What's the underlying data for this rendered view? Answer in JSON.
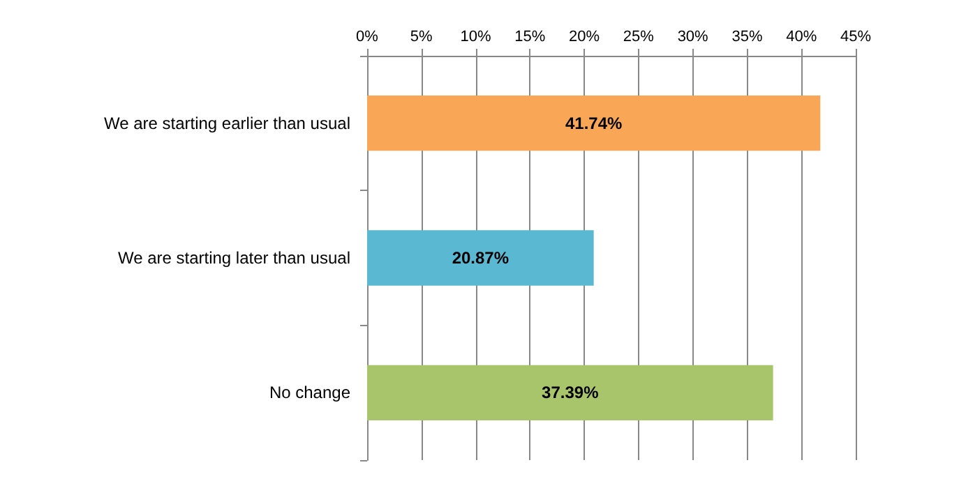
{
  "chart_data": {
    "type": "bar",
    "orientation": "horizontal",
    "categories": [
      "We are starting earlier than usual",
      "We are starting later than usual",
      "No change"
    ],
    "values": [
      41.74,
      20.87,
      37.39
    ],
    "colors": [
      "#f9a656",
      "#5bb8d3",
      "#a9c56c"
    ],
    "value_labels": [
      "41.74%",
      "20.87%",
      "37.39%"
    ],
    "xlim": [
      0,
      45
    ],
    "xticks": [
      {
        "value": 0,
        "label": "0%"
      },
      {
        "value": 5,
        "label": "5%"
      },
      {
        "value": 10,
        "label": "10%"
      },
      {
        "value": 15,
        "label": "15%"
      },
      {
        "value": 20,
        "label": "20%"
      },
      {
        "value": 25,
        "label": "25%"
      },
      {
        "value": 30,
        "label": "30%"
      },
      {
        "value": 35,
        "label": "35%"
      },
      {
        "value": 40,
        "label": "40%"
      },
      {
        "value": 45,
        "label": "45%"
      }
    ],
    "grid": "x"
  }
}
